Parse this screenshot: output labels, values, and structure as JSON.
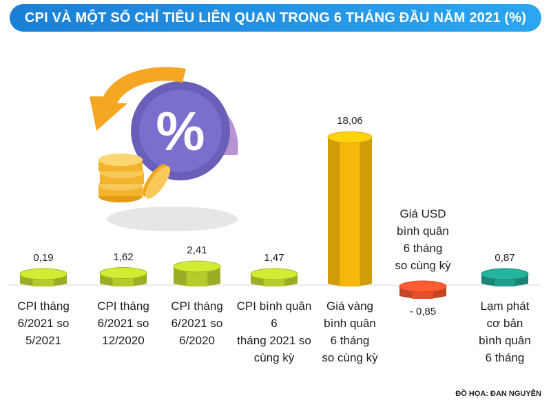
{
  "chart_data": {
    "type": "bar",
    "title": "CPI VÀ MỘT SỐ CHỈ TIÊU LIÊN QUAN TRONG 6 THÁNG ĐẦU NĂM 2021 (%)",
    "categories": [
      "CPI tháng\n6/2021 so\n5/2021",
      "CPI tháng\n6/2021 so\n12/2020",
      "CPI tháng\n6/2021 so\n6/2020",
      "CPI bình quân 6\ntháng 2021 so\ncùng kỳ",
      "Giá vàng\nbình quân\n6 tháng\nso cùng kỳ",
      "Giá USD\nbình quân\n6 tháng\nso cùng kỳ",
      "Lạm phát\ncơ bản\nbình quân\n6 tháng"
    ],
    "values": [
      0.19,
      1.62,
      2.41,
      1.47,
      18.06,
      -0.85,
      0.87
    ],
    "value_labels": [
      "0,19",
      "1,62",
      "2,41",
      "1,47",
      "18,06",
      "- 0,85",
      "0,87"
    ],
    "colors": [
      "#b7cc2c",
      "#b7cc2c",
      "#b7cc2c",
      "#b7cc2c",
      "#f6b80c",
      "#e8502b",
      "#1f9c8a"
    ],
    "credit": "ĐỒ HỌA: ĐAN NGUYỄN"
  },
  "icons": [
    "percent-coin-icon"
  ]
}
